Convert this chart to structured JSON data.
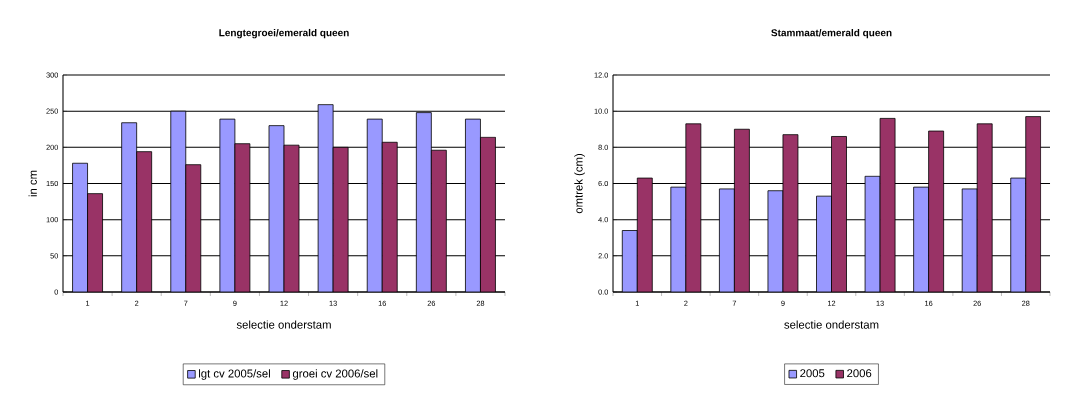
{
  "chart_data": [
    {
      "type": "bar",
      "title": "Lengtegroei/emerald queen",
      "xlabel": "selectie onderstam",
      "ylabel": "in cm",
      "categories": [
        "1",
        "2",
        "7",
        "9",
        "12",
        "13",
        "16",
        "26",
        "28"
      ],
      "series": [
        {
          "name": "lgt cv 2005/sel",
          "color": "#9999ff",
          "values": [
            178,
            234,
            250,
            239,
            230,
            259,
            239,
            248,
            239
          ]
        },
        {
          "name": "groei cv 2006/sel",
          "color": "#993366",
          "values": [
            136,
            194,
            176,
            205,
            203,
            200,
            207,
            196,
            214
          ]
        }
      ],
      "ylim": [
        0,
        300
      ],
      "yticks": [
        0,
        50,
        100,
        150,
        200,
        250,
        300
      ],
      "grid": "y",
      "legend": "bottom"
    },
    {
      "type": "bar",
      "title": "Stammaat/emerald queen",
      "xlabel": "selectie onderstam",
      "ylabel": "omtrek (cm)",
      "categories": [
        "1",
        "2",
        "7",
        "9",
        "12",
        "13",
        "16",
        "26",
        "28"
      ],
      "series": [
        {
          "name": "2005",
          "color": "#9999ff",
          "values": [
            3.4,
            5.8,
            5.7,
            5.6,
            5.3,
            6.4,
            5.8,
            5.7,
            6.3
          ]
        },
        {
          "name": "2006",
          "color": "#993366",
          "values": [
            6.3,
            9.3,
            9.0,
            8.7,
            8.6,
            9.6,
            8.9,
            9.3,
            9.7
          ]
        }
      ],
      "ylim": [
        0,
        12
      ],
      "yticks": [
        {
          "value": 0,
          "label": "0.0"
        },
        {
          "value": 2,
          "label": "2.0"
        },
        {
          "value": 4,
          "label": "4.0"
        },
        {
          "value": 6,
          "label": "6.0"
        },
        {
          "value": 8,
          "label": "8.0"
        },
        {
          "value": 10,
          "label": "10.0"
        },
        {
          "value": 12,
          "label": "12.0"
        }
      ],
      "grid": "y",
      "legend": "bottom"
    }
  ]
}
